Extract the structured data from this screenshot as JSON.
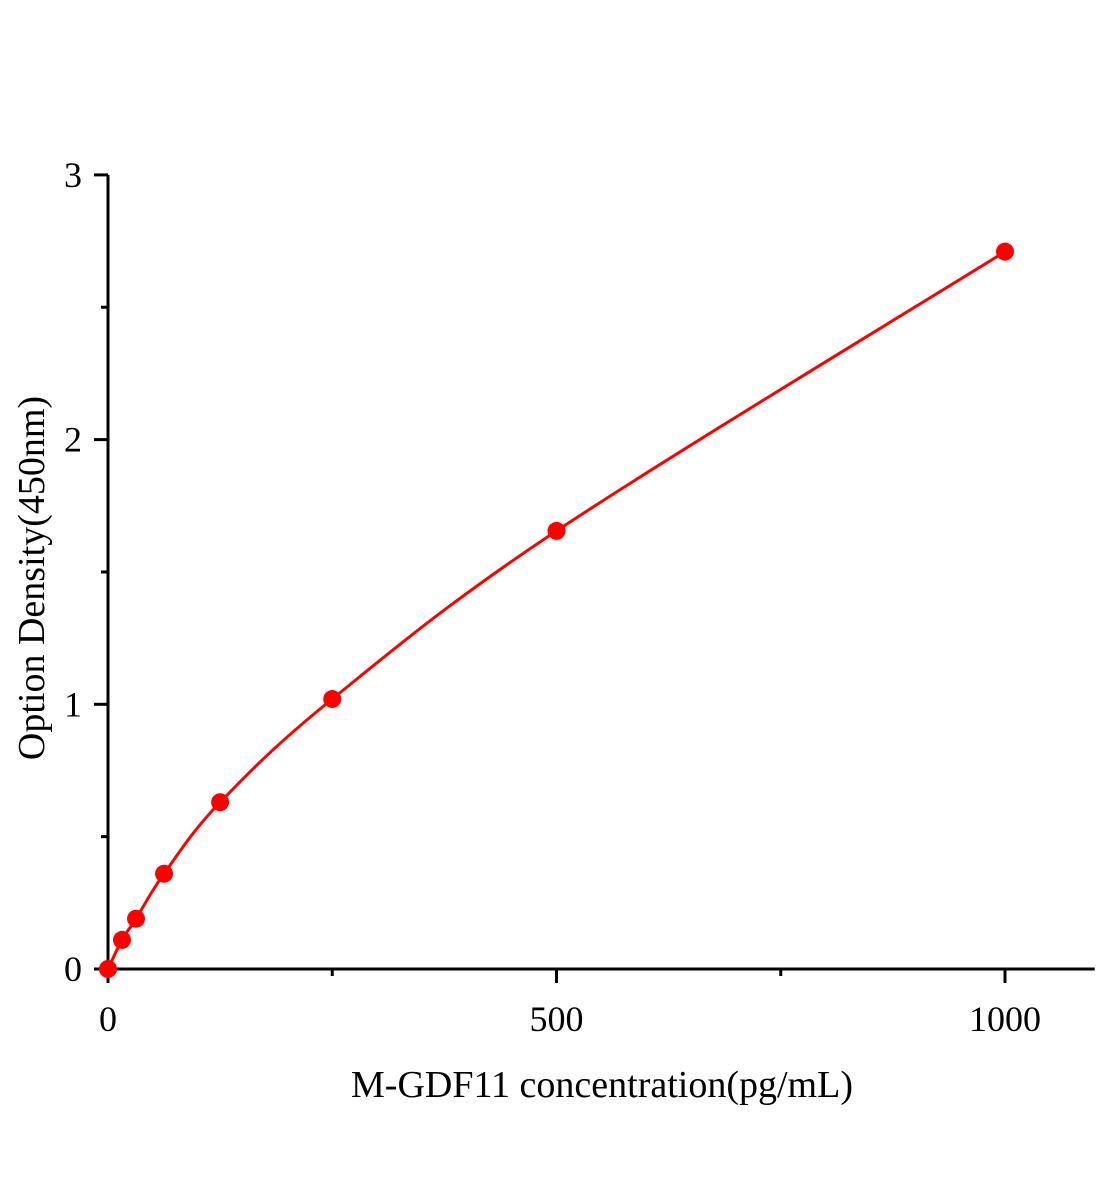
{
  "chart_data": {
    "type": "scatter",
    "title": "",
    "xlabel": "M-GDF11 concentration(pg/mL)",
    "ylabel": "Option Density(450nm)",
    "xlim": [
      0,
      1100
    ],
    "ylim": [
      0,
      3
    ],
    "x_ticks": [
      0,
      500,
      1000
    ],
    "x_tick_labels": [
      "0",
      "500",
      "1000"
    ],
    "x_minor_ticks": [
      250,
      750
    ],
    "y_ticks": [
      0,
      1,
      2,
      3
    ],
    "y_tick_labels": [
      "0",
      "1",
      "2",
      "3"
    ],
    "y_minor_ticks": [
      0.5,
      1.5,
      2.5
    ],
    "grid": false,
    "legend": "none",
    "series": [
      {
        "x": [
          0,
          15.6,
          31.25,
          62.5,
          125,
          250,
          500,
          1000
        ],
        "y": [
          0.0,
          0.11,
          0.19,
          0.36,
          0.63,
          1.02,
          1.655,
          2.71
        ],
        "color": "#ff0000",
        "marker": "circle",
        "fit_line": "smooth curve"
      }
    ]
  }
}
